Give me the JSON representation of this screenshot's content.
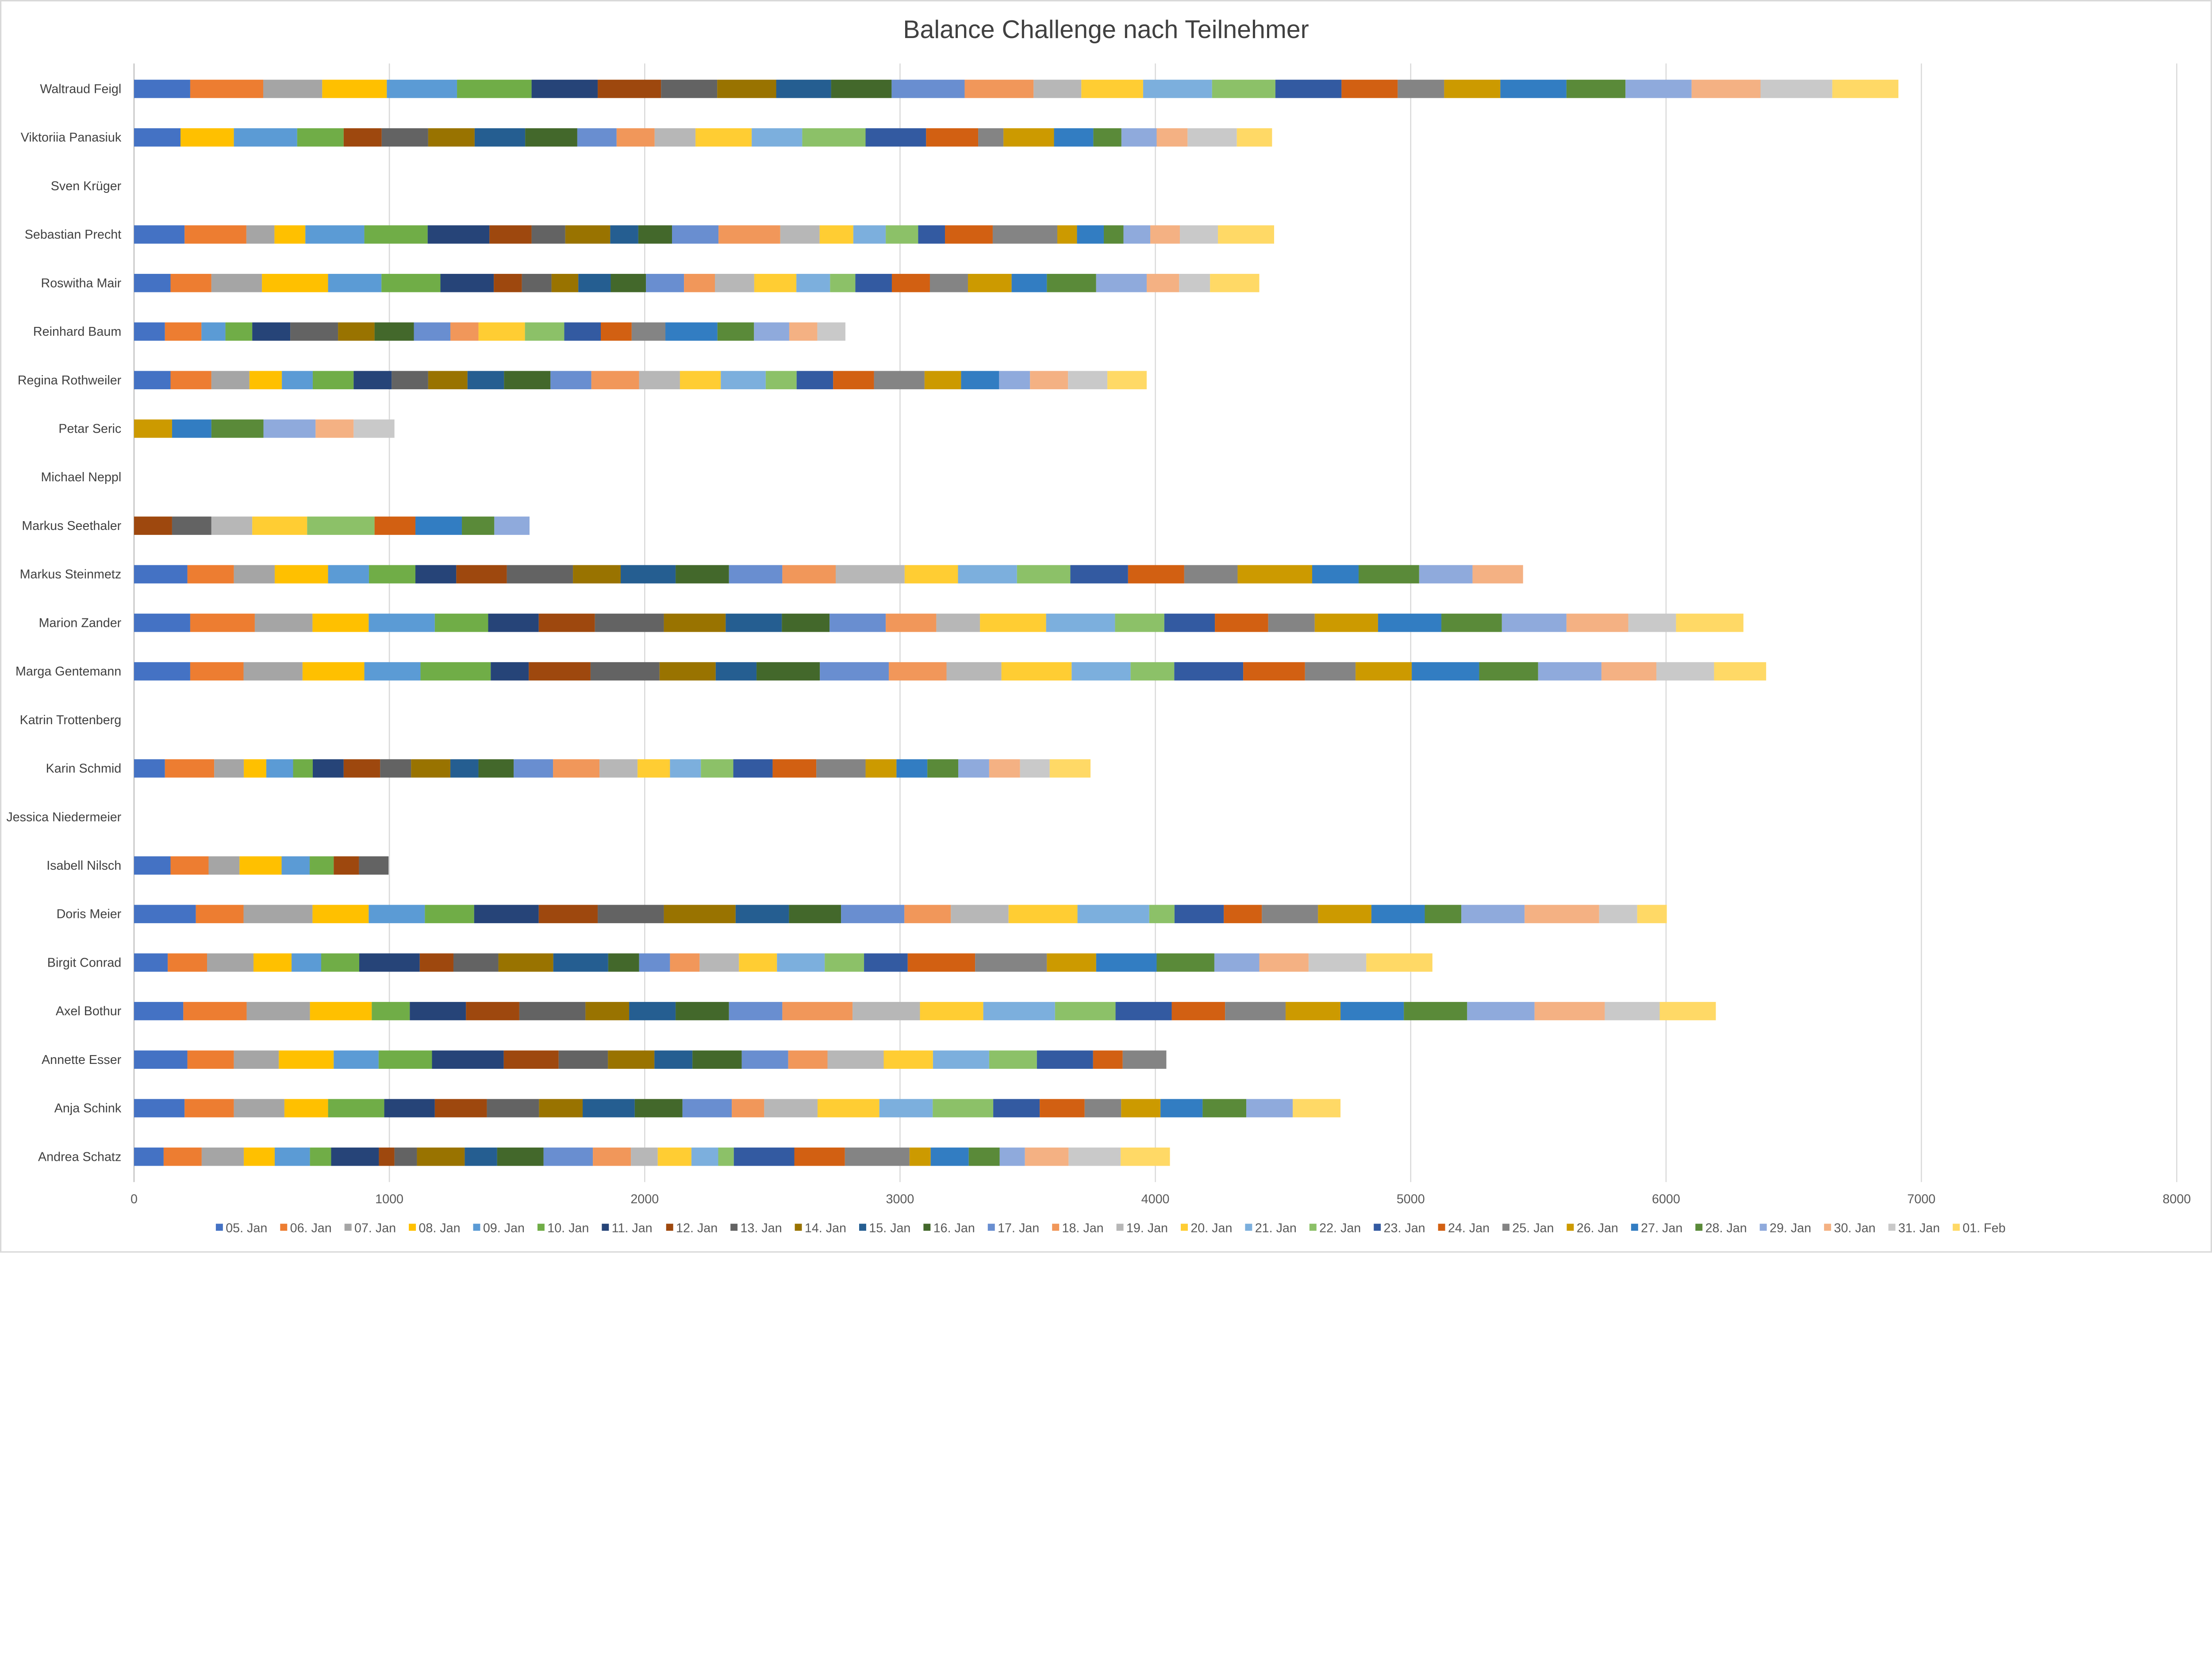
{
  "chart_data": {
    "type": "bar",
    "orientation": "horizontal",
    "stacked": true,
    "title": "Balance Challenge nach Teilnehmer",
    "xlabel": "",
    "ylabel": "",
    "xlim": [
      0,
      8000
    ],
    "xticks": [
      "0",
      "1000",
      "2000",
      "3000",
      "4000",
      "5000",
      "6000",
      "7000",
      "8000"
    ],
    "grid": true,
    "legend_position": "bottom",
    "categories": [
      "Waltraud Feigl",
      "Viktoriia Panasiuk",
      "Sven Krüger",
      "Sebastian Precht",
      "Roswitha Mair",
      "Reinhard Baum",
      "Regina Rothweiler",
      "Petar Seric",
      "Michael Neppl",
      "Markus Seethaler",
      "Markus Steinmetz",
      "Marion Zander",
      "Marga Gentemann",
      "Katrin Trottenberg",
      "Karin Schmid",
      "Jessica Niedermeier",
      "Isabell Nilsch",
      "Doris Meier",
      "Birgit Conrad",
      "Axel Bothur",
      "Annette Esser",
      "Anja Schink",
      "Andrea Schatz"
    ],
    "series_names": [
      "05. Jan",
      "06. Jan",
      "07. Jan",
      "08. Jan",
      "09. Jan",
      "10. Jan",
      "11. Jan",
      "12. Jan",
      "13. Jan",
      "14. Jan",
      "15. Jan",
      "16. Jan",
      "17. Jan",
      "18. Jan",
      "19. Jan",
      "20. Jan",
      "21. Jan",
      "22. Jan",
      "23. Jan",
      "24. Jan",
      "25. Jan",
      "26. Jan",
      "27. Jan",
      "28. Jan",
      "29. Jan",
      "30. Jan",
      "31. Jan",
      "01. Feb"
    ],
    "series_colors": [
      "#4472C4",
      "#ED7D31",
      "#A5A5A5",
      "#FFC000",
      "#5B9BD5",
      "#70AD47",
      "#264478",
      "#9E480E",
      "#636363",
      "#997300",
      "#255E91",
      "#43682B",
      "#698ED0",
      "#F1975A",
      "#B7B7B7",
      "#FFCD33",
      "#7CAFDD",
      "#8CC168",
      "#335AA1",
      "#D26012",
      "#848484",
      "#CC9A00",
      "#327DC2",
      "#5A8A39",
      "#8FAADC",
      "#F4B183",
      "#C9C9C9",
      "#FFD966"
    ],
    "values_by_category": [
      [
        220,
        286,
        231,
        253,
        275,
        292,
        259,
        248,
        220,
        231,
        215,
        237,
        286,
        270,
        187,
        242,
        270,
        248,
        259,
        220,
        182,
        220,
        259,
        231,
        259,
        270,
        281,
        259
      ],
      [
        182,
        0,
        0,
        209,
        248,
        182,
        0,
        149,
        182,
        182,
        198,
        204,
        154,
        149,
        160,
        220,
        198,
        248,
        237,
        204,
        99,
        198,
        154,
        110,
        138,
        121,
        193,
        138
      ],
      [
        0,
        0,
        0,
        0,
        0,
        0,
        0,
        0,
        0,
        0,
        0,
        0,
        0,
        0,
        0,
        0,
        0,
        0,
        0,
        0,
        0,
        0,
        0,
        0,
        0,
        0,
        0,
        0
      ],
      [
        198,
        242,
        110,
        121,
        231,
        248,
        242,
        165,
        132,
        176,
        110,
        132,
        182,
        242,
        154,
        132,
        127,
        127,
        105,
        187,
        253,
        77,
        105,
        77,
        105,
        116,
        149,
        220
      ],
      [
        143,
        160,
        198,
        259,
        209,
        231,
        209,
        110,
        116,
        105,
        127,
        138,
        149,
        121,
        154,
        165,
        132,
        99,
        143,
        149,
        149,
        171,
        138,
        193,
        198,
        127,
        121,
        193
      ],
      [
        121,
        143,
        0,
        0,
        94,
        105,
        149,
        0,
        187,
        143,
        0,
        154,
        143,
        110,
        0,
        182,
        0,
        154,
        143,
        121,
        132,
        0,
        204,
        143,
        138,
        110,
        110,
        0
      ],
      [
        143,
        160,
        149,
        127,
        121,
        160,
        149,
        0,
        143,
        154,
        143,
        182,
        160,
        187,
        160,
        160,
        176,
        121,
        143,
        160,
        198,
        143,
        149,
        0,
        121,
        149,
        154,
        154
      ],
      [
        0,
        0,
        0,
        0,
        0,
        0,
        0,
        0,
        0,
        0,
        0,
        0,
        0,
        0,
        0,
        0,
        0,
        0,
        0,
        0,
        0,
        149,
        154,
        204,
        204,
        149,
        160,
        0
      ],
      [
        0,
        0,
        0,
        0,
        0,
        0,
        0,
        0,
        0,
        0,
        0,
        0,
        0,
        0,
        0,
        0,
        0,
        0,
        0,
        0,
        0,
        0,
        0,
        0,
        0,
        0,
        0,
        0
      ],
      [
        0,
        0,
        0,
        0,
        0,
        0,
        0,
        149,
        154,
        0,
        0,
        0,
        0,
        0,
        160,
        215,
        0,
        264,
        0,
        160,
        0,
        0,
        182,
        127,
        138,
        0,
        0,
        0
      ],
      [
        209,
        182,
        160,
        209,
        160,
        182,
        160,
        198,
        259,
        187,
        215,
        209,
        209,
        209,
        270,
        209,
        231,
        209,
        226,
        220,
        209,
        292,
        182,
        237,
        209,
        198,
        0,
        0
      ],
      [
        220,
        253,
        226,
        220,
        259,
        209,
        198,
        220,
        270,
        242,
        220,
        187,
        220,
        198,
        171,
        259,
        270,
        193,
        198,
        209,
        182,
        248,
        248,
        237,
        253,
        242,
        187,
        264
      ],
      [
        220,
        209,
        231,
        242,
        220,
        275,
        149,
        242,
        270,
        220,
        160,
        248,
        270,
        226,
        215,
        275,
        231,
        171,
        270,
        242,
        198,
        220,
        264,
        231,
        248,
        215,
        226,
        204
      ],
      [
        0,
        0,
        0,
        0,
        0,
        0,
        0,
        0,
        0,
        0,
        0,
        0,
        0,
        0,
        0,
        0,
        0,
        0,
        0,
        0,
        0,
        0,
        0,
        0,
        0,
        0,
        0,
        0
      ],
      [
        121,
        193,
        116,
        88,
        105,
        77,
        121,
        143,
        121,
        154,
        110,
        138,
        154,
        182,
        149,
        127,
        121,
        127,
        154,
        171,
        193,
        121,
        121,
        121,
        121,
        121,
        116,
        160
      ],
      [
        0,
        0,
        0,
        0,
        0,
        0,
        0,
        0,
        0,
        0,
        0,
        0,
        0,
        0,
        0,
        0,
        0,
        0,
        0,
        0,
        0,
        0,
        0,
        0,
        0,
        0,
        0,
        0
      ],
      [
        143,
        149,
        121,
        165,
        110,
        94,
        0,
        99,
        116,
        0,
        0,
        0,
        0,
        0,
        0,
        0,
        0,
        0,
        0,
        0,
        0,
        0,
        0,
        0,
        0,
        0,
        0,
        0
      ],
      [
        242,
        187,
        270,
        220,
        220,
        193,
        253,
        231,
        259,
        281,
        209,
        204,
        248,
        182,
        226,
        270,
        281,
        99,
        193,
        149,
        220,
        209,
        209,
        143,
        248,
        292,
        149,
        116
      ],
      [
        132,
        154,
        182,
        149,
        116,
        149,
        237,
        132,
        176,
        215,
        215,
        121,
        121,
        116,
        154,
        149,
        187,
        154,
        171,
        264,
        281,
        193,
        237,
        226,
        176,
        193,
        226,
        259
      ],
      [
        193,
        248,
        248,
        242,
        0,
        149,
        220,
        209,
        259,
        171,
        182,
        209,
        209,
        275,
        264,
        248,
        281,
        237,
        220,
        209,
        237,
        215,
        248,
        248,
        264,
        275,
        215,
        220
      ],
      [
        209,
        182,
        176,
        215,
        176,
        209,
        281,
        215,
        193,
        182,
        149,
        193,
        182,
        154,
        220,
        193,
        220,
        187,
        220,
        116,
        171,
        0,
        0,
        0,
        0,
        0,
        0,
        0
      ],
      [
        198,
        193,
        198,
        171,
        0,
        220,
        198,
        204,
        204,
        171,
        204,
        187,
        193,
        127,
        209,
        242,
        209,
        237,
        182,
        176,
        143,
        154,
        165,
        171,
        182,
        0,
        0,
        187
      ],
      [
        116,
        149,
        165,
        121,
        138,
        83,
        187,
        61,
        88,
        187,
        127,
        182,
        193,
        149,
        105,
        132,
        105,
        61,
        237,
        198,
        253,
        83,
        149,
        121,
        99,
        171,
        204,
        193
      ]
    ]
  }
}
